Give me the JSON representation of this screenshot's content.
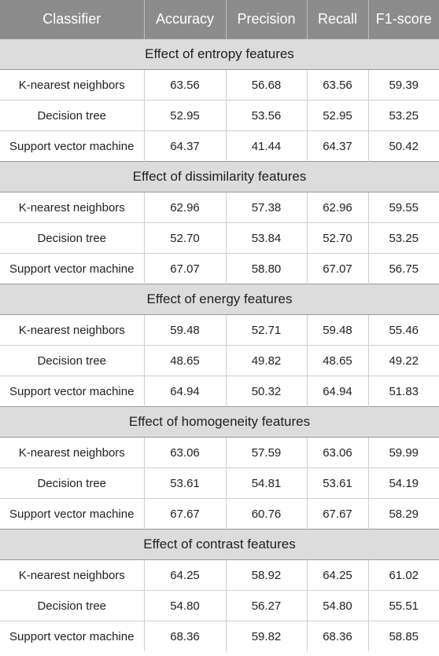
{
  "table": {
    "headers": [
      "Classifier",
      "Accuracy",
      "Precision",
      "Recall",
      "F1-score"
    ],
    "groups": [
      {
        "title": "Effect of entropy features",
        "rows": [
          [
            "K-nearest neighbors",
            "63.56",
            "56.68",
            "63.56",
            "59.39"
          ],
          [
            "Decision tree",
            "52.95",
            "53.56",
            "52.95",
            "53.25"
          ],
          [
            "Support vector machine",
            "64.37",
            "41.44",
            "64.37",
            "50.42"
          ]
        ]
      },
      {
        "title": "Effect of dissimilarity features",
        "rows": [
          [
            "K-nearest neighbors",
            "62.96",
            "57.38",
            "62.96",
            "59.55"
          ],
          [
            "Decision tree",
            "52.70",
            "53.84",
            "52.70",
            "53.25"
          ],
          [
            "Support vector machine",
            "67.07",
            "58.80",
            "67.07",
            "56.75"
          ]
        ]
      },
      {
        "title": "Effect of energy features",
        "rows": [
          [
            "K-nearest neighbors",
            "59.48",
            "52.71",
            "59.48",
            "55.46"
          ],
          [
            "Decision tree",
            "48.65",
            "49.82",
            "48.65",
            "49.22"
          ],
          [
            "Support vector machine",
            "64.94",
            "50.32",
            "64.94",
            "51.83"
          ]
        ]
      },
      {
        "title": "Effect of homogeneity features",
        "rows": [
          [
            "K-nearest neighbors",
            "63.06",
            "57.59",
            "63.06",
            "59.99"
          ],
          [
            "Decision tree",
            "53.61",
            "54.81",
            "53.61",
            "54.19"
          ],
          [
            "Support vector machine",
            "67.67",
            "60.76",
            "67.67",
            "58.29"
          ]
        ]
      },
      {
        "title": "Effect of contrast features",
        "rows": [
          [
            "K-nearest neighbors",
            "64.25",
            "58.92",
            "64.25",
            "61.02"
          ],
          [
            "Decision tree",
            "54.80",
            "56.27",
            "54.80",
            "55.51"
          ],
          [
            "Support vector machine",
            "68.36",
            "59.82",
            "68.36",
            "58.85"
          ]
        ]
      }
    ]
  }
}
